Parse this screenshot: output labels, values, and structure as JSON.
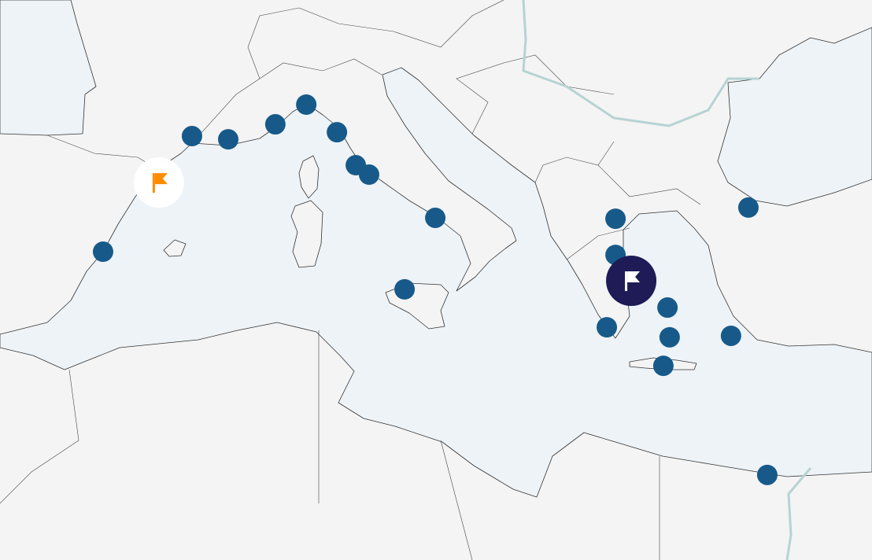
{
  "map": {
    "region": "Mediterranean",
    "colors": {
      "land": "#f4f4f4",
      "sea": "#edf3f7",
      "river": "#b6d3d3",
      "port_marker": "#175a8a",
      "selected_flag_bg": "#1e1b57",
      "origin_flag": "#ff8c00"
    },
    "ports": [
      {
        "lon": 4.2,
        "lat": 43.34
      },
      {
        "lon": 5.7,
        "lat": 43.23
      },
      {
        "lon": 7.65,
        "lat": 43.74
      },
      {
        "lon": 8.93,
        "lat": 44.41
      },
      {
        "lon": 10.2,
        "lat": 43.47
      },
      {
        "lon": 10.98,
        "lat": 42.35
      },
      {
        "lon": 11.53,
        "lat": 42.03
      },
      {
        "lon": 14.27,
        "lat": 40.56
      },
      {
        "lon": 13.0,
        "lat": 38.13
      },
      {
        "lon": 0.52,
        "lat": 39.41
      },
      {
        "lon": 21.73,
        "lat": 40.53
      },
      {
        "lon": 21.73,
        "lat": 39.3
      },
      {
        "lon": 23.88,
        "lat": 37.51
      },
      {
        "lon": 21.37,
        "lat": 36.84
      },
      {
        "lon": 23.97,
        "lat": 36.5
      },
      {
        "lon": 23.71,
        "lat": 35.53
      },
      {
        "lon": 26.51,
        "lat": 36.55
      },
      {
        "lon": 27.23,
        "lat": 40.91
      },
      {
        "lon": 28.01,
        "lat": 31.82
      }
    ],
    "flags": [
      {
        "type": "origin",
        "icon": "flag-icon",
        "lon": 2.83,
        "lat": 41.76
      },
      {
        "type": "selected",
        "icon": "flag-icon",
        "lon": 22.38,
        "lat": 38.42
      }
    ]
  }
}
